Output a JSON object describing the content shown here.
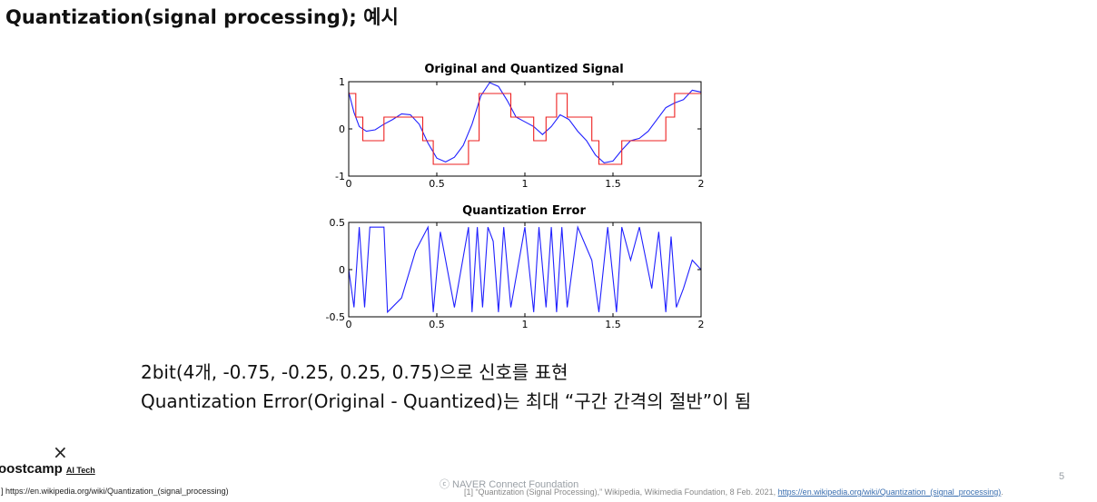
{
  "slide": {
    "title": "Quantization(signal processing); 예시",
    "caption_line1": "2bit(4개, -0.75, -0.25, 0.25, 0.75)으로 신호를 표현",
    "caption_line2": "Quantization Error(Original - Quantized)는 최대 “구간 간격의 절반”이 됨",
    "page_number": "5"
  },
  "footer": {
    "close_symbol": "×",
    "brand_name": "oostcamp",
    "brand_sub": "AI Tech",
    "source_left": "] https://en.wikipedia.org/wiki/Quantization_(signal_processing)",
    "copyright": "ⓒ  NAVER Connect Foundation",
    "ref_text": "[1] “Quantization (Signal Processing),” Wikipedia, Wikimedia Foundation, 8 Feb. 2021, ",
    "ref_link": "https://en.wikipedia.org/wiki/Quantization_(signal_processing)",
    "ref_end": "."
  },
  "chart_data": [
    {
      "type": "line",
      "title": "Original and Quantized Signal",
      "xlim": [
        0,
        2
      ],
      "ylim": [
        -1,
        1
      ],
      "xticks": [
        "0",
        "0.5",
        "1",
        "1.5",
        "2"
      ],
      "yticks": [
        "-1",
        "0",
        "1"
      ],
      "series": [
        {
          "color": "#2020ff",
          "x": [
            0,
            0.03,
            0.06,
            0.1,
            0.15,
            0.2,
            0.25,
            0.3,
            0.35,
            0.4,
            0.45,
            0.5,
            0.55,
            0.6,
            0.65,
            0.7,
            0.75,
            0.8,
            0.85,
            0.9,
            0.95,
            1.0,
            1.05,
            1.1,
            1.15,
            1.2,
            1.25,
            1.3,
            1.35,
            1.4,
            1.45,
            1.5,
            1.55,
            1.6,
            1.65,
            1.7,
            1.75,
            1.8,
            1.85,
            1.9,
            1.95,
            2.0
          ],
          "y": [
            0.78,
            0.35,
            0.05,
            -0.05,
            -0.02,
            0.1,
            0.2,
            0.32,
            0.3,
            0.1,
            -0.3,
            -0.62,
            -0.7,
            -0.6,
            -0.35,
            0.1,
            0.7,
            0.98,
            0.9,
            0.6,
            0.25,
            0.15,
            0.05,
            -0.12,
            0.05,
            0.3,
            0.2,
            -0.05,
            -0.25,
            -0.55,
            -0.72,
            -0.68,
            -0.45,
            -0.25,
            -0.2,
            -0.05,
            0.2,
            0.45,
            0.55,
            0.62,
            0.82,
            0.78
          ]
        },
        {
          "color": "#ee2020",
          "x": [
            0,
            0.04,
            0.08,
            0.2,
            0.42,
            0.48,
            0.68,
            0.74,
            0.82,
            0.92,
            1.05,
            1.12,
            1.18,
            1.24,
            1.38,
            1.42,
            1.55,
            1.8,
            1.85,
            2.0
          ],
          "y": [
            0.75,
            0.25,
            -0.25,
            0.25,
            -0.25,
            -0.75,
            -0.25,
            0.75,
            0.75,
            0.25,
            -0.25,
            0.25,
            0.75,
            0.25,
            -0.25,
            -0.75,
            -0.25,
            0.25,
            0.75,
            0.75
          ]
        }
      ]
    },
    {
      "type": "line",
      "title": "Quantization Error",
      "xlim": [
        0,
        2
      ],
      "ylim": [
        -0.5,
        0.5
      ],
      "xticks": [
        "0",
        "0.5",
        "1",
        "1.5",
        "2"
      ],
      "yticks": [
        "-0.5",
        "0",
        "0.5"
      ],
      "series": [
        {
          "color": "#2020ff",
          "x": [
            0,
            0.03,
            0.06,
            0.09,
            0.12,
            0.15,
            0.2,
            0.22,
            0.3,
            0.38,
            0.45,
            0.48,
            0.52,
            0.6,
            0.68,
            0.7,
            0.73,
            0.76,
            0.79,
            0.82,
            0.85,
            0.88,
            0.92,
            1.0,
            1.05,
            1.08,
            1.12,
            1.15,
            1.18,
            1.21,
            1.24,
            1.3,
            1.38,
            1.42,
            1.47,
            1.52,
            1.55,
            1.6,
            1.65,
            1.72,
            1.76,
            1.8,
            1.83,
            1.86,
            1.9,
            1.95,
            2.0
          ],
          "y": [
            0.0,
            -0.4,
            0.45,
            -0.4,
            0.45,
            0.45,
            0.45,
            -0.45,
            -0.3,
            0.2,
            0.45,
            -0.45,
            0.4,
            -0.4,
            0.45,
            -0.45,
            0.45,
            -0.4,
            0.45,
            0.3,
            -0.45,
            0.45,
            -0.4,
            0.45,
            -0.45,
            0.45,
            -0.4,
            0.45,
            -0.45,
            0.45,
            -0.4,
            0.45,
            0.1,
            -0.45,
            0.45,
            -0.45,
            0.45,
            0.1,
            0.45,
            -0.2,
            0.4,
            -0.45,
            0.35,
            -0.4,
            -0.2,
            0.1,
            0.0
          ]
        }
      ]
    }
  ]
}
